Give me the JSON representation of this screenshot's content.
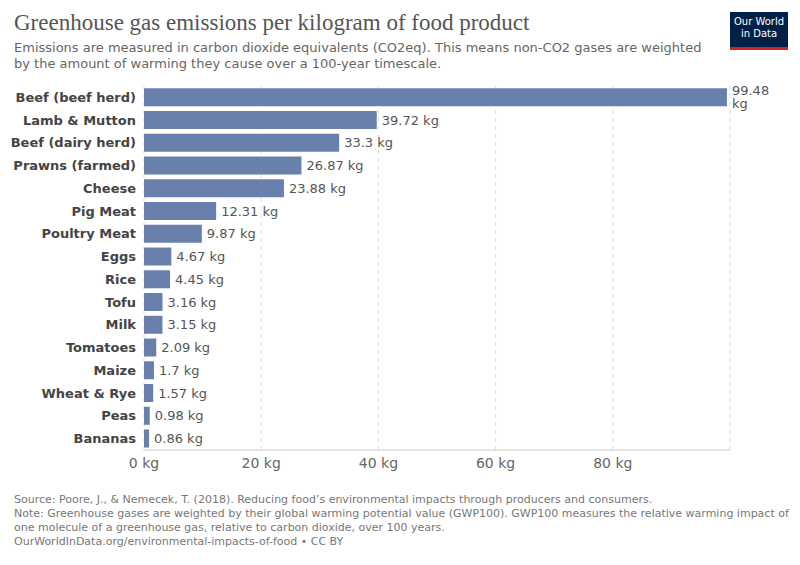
{
  "chart_data": {
    "type": "bar",
    "orientation": "horizontal",
    "title": "Greenhouse gas emissions per kilogram of food product",
    "subtitle": "Emissions are measured in carbon dioxide equivalents (CO2eq). This means non-CO2 gases are weighted by the amount of warming they cause over a 100-year timescale.",
    "categories": [
      "Beef (beef herd)",
      "Lamb & Mutton",
      "Beef (dairy herd)",
      "Prawns (farmed)",
      "Cheese",
      "Pig Meat",
      "Poultry Meat",
      "Eggs",
      "Rice",
      "Tofu",
      "Milk",
      "Tomatoes",
      "Maize",
      "Wheat & Rye",
      "Peas",
      "Bananas"
    ],
    "values": [
      99.48,
      39.72,
      33.3,
      26.87,
      23.88,
      12.31,
      9.87,
      4.67,
      4.45,
      3.16,
      3.15,
      2.09,
      1.7,
      1.57,
      0.98,
      0.86
    ],
    "value_labels": [
      "99.48 kg",
      "39.72 kg",
      "33.3 kg",
      "26.87 kg",
      "23.88 kg",
      "12.31 kg",
      "9.87 kg",
      "4.67 kg",
      "4.45 kg",
      "3.16 kg",
      "3.15 kg",
      "2.09 kg",
      "1.7 kg",
      "1.57 kg",
      "0.98 kg",
      "0.86 kg"
    ],
    "data_labels": true,
    "color": "#6a80ac",
    "xlim": [
      0,
      100
    ],
    "xticks": [
      {
        "value": 0,
        "label": "0 kg"
      },
      {
        "value": 20,
        "label": "20 kg"
      },
      {
        "value": 40,
        "label": "40 kg"
      },
      {
        "value": 60,
        "label": "60 kg"
      },
      {
        "value": 80,
        "label": "80 kg"
      }
    ],
    "grid": true,
    "logo_lines": [
      "Our World",
      "in Data"
    ],
    "source": "Source: Poore, J., & Nemecek, T. (2018). Reducing food’s environmental impacts through producers and consumers.",
    "note": "Note: Greenhouse gases are weighted by their global warming potential value (GWP100). GWP100 measures the relative warming impact of one molecule of a greenhouse gas, relative to carbon dioxide, over 100 years.",
    "footer": "OurWorldInData.org/environmental-impacts-of-food • CC BY"
  }
}
